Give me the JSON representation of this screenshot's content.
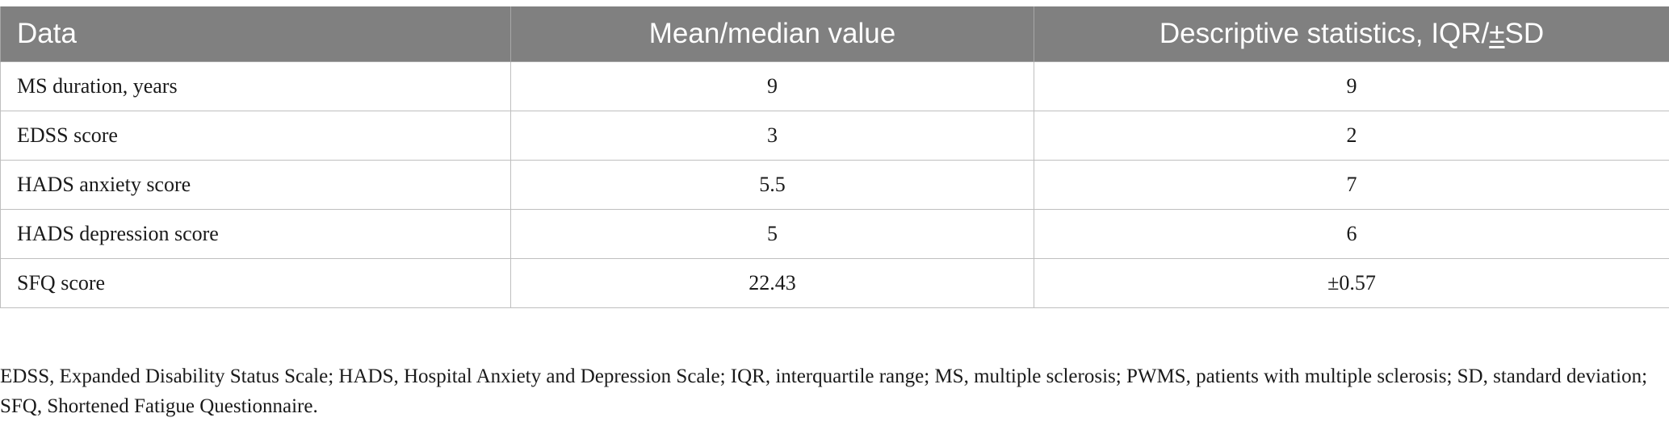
{
  "table": {
    "headers": [
      "Data",
      "Mean/median value",
      "Descriptive statistics, IQR/"
    ],
    "header_pm_symbol": "±",
    "header_suffix": "SD",
    "rows": [
      [
        "MS duration, years",
        "9",
        "9"
      ],
      [
        "EDSS score",
        "3",
        "2"
      ],
      [
        "HADS anxiety score",
        "5.5",
        "7"
      ],
      [
        "HADS depression score",
        "5",
        "6"
      ],
      [
        "SFQ score",
        "22.43",
        "±0.57"
      ]
    ],
    "colors": {
      "header_bg": "#808080",
      "header_text": "#ffffff",
      "grid_line": "#bfbfbf"
    }
  },
  "footnote": "EDSS, Expanded Disability Status Scale; HADS, Hospital Anxiety and Depression Scale; IQR, interquartile range; MS, multiple sclerosis; PWMS, patients with multiple sclerosis; SD, standard deviation; SFQ, Shortened Fatigue Questionnaire."
}
